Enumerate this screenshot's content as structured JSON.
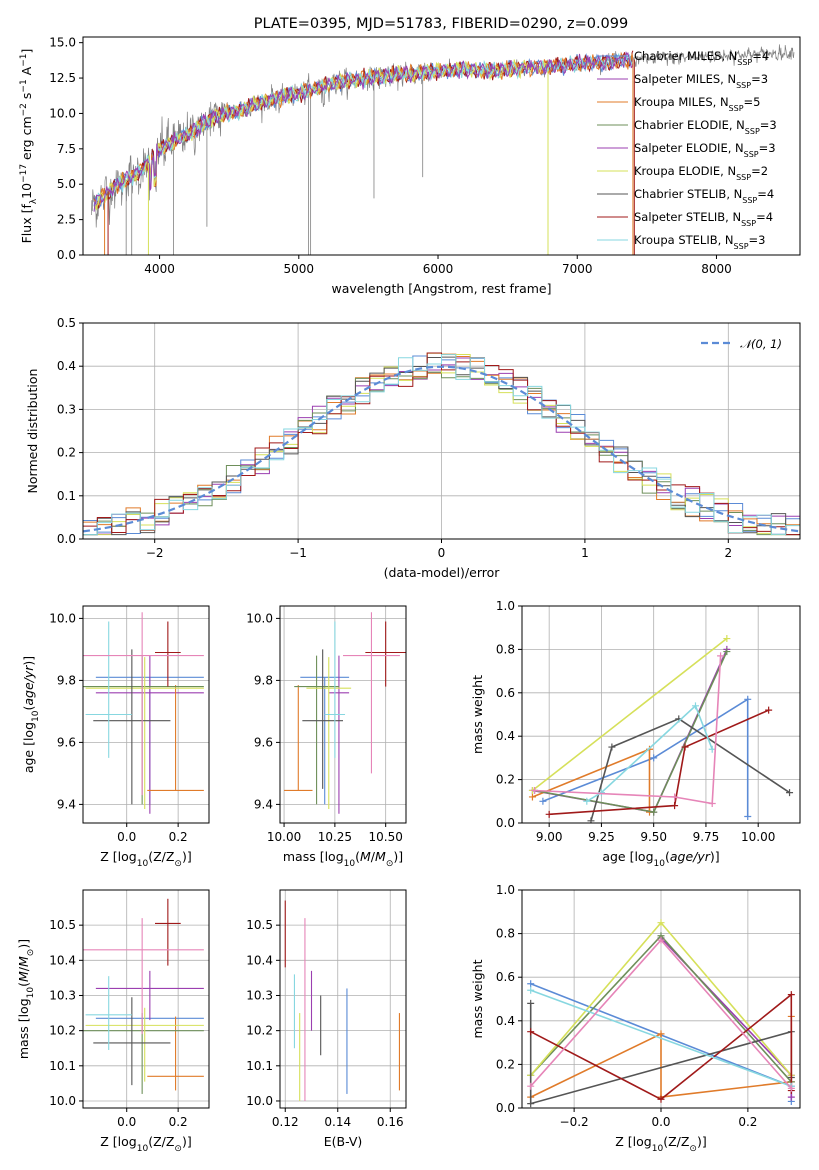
{
  "colors": {
    "Chabrier MILES": "#5b8bd6",
    "Salpeter MILES": "#9b3fb0",
    "Kroupa MILES": "#e07b2a",
    "Chabrier ELODIE": "#6e8f5a",
    "Salpeter ELODIE": "#9b3fb0",
    "Kroupa ELODIE": "#d6e05a",
    "Chabrier STELIB": "#555555",
    "Salpeter STELIB": "#a01a1a",
    "Kroupa STELIB": "#87d7e0",
    "pink": "#e685b8",
    "gray_data": "#808080",
    "normal": "#5b8bd6"
  },
  "chart_data": [
    {
      "id": "spectrum",
      "type": "line",
      "title": "PLATE=0395, MJD=51783, FIBERID=0290, z=0.099",
      "xlabel": "wavelength [Angstrom, rest frame]",
      "ylabel_html": "Flux [f<tspan baseline-shift='sub' font-size='9'>λ</tspan>10<tspan baseline-shift='super' font-size='9'>−17</tspan> erg cm<tspan baseline-shift='super' font-size='9'>−2</tspan> s<tspan baseline-shift='super' font-size='9'>−1</tspan> A<tspan baseline-shift='super' font-size='9'>−1</tspan>]",
      "xlim": [
        3450,
        8600
      ],
      "ylim": [
        0,
        15.4
      ],
      "xticks": [
        4000,
        5000,
        6000,
        7000,
        8000
      ],
      "yticks": [
        0.0,
        2.5,
        5.0,
        7.5,
        10.0,
        12.5,
        15.0
      ],
      "ytick_labels": [
        "0.0",
        "2.5",
        "5.0",
        "7.5",
        "10.0",
        "12.5",
        "15.0"
      ],
      "continuum": {
        "x": [
          3520,
          3700,
          3850,
          4000,
          4200,
          4400,
          4600,
          4800,
          5000,
          5200,
          5400,
          5600,
          5800,
          6000,
          6200,
          6400,
          6600,
          6800,
          7000,
          7200,
          7400
        ],
        "y": [
          3.5,
          5.0,
          5.8,
          7.5,
          8.5,
          9.8,
          10.3,
          11.0,
          11.4,
          12.0,
          12.4,
          12.6,
          12.8,
          13.0,
          13.1,
          13.0,
          13.2,
          13.3,
          13.5,
          13.6,
          13.8
        ]
      },
      "legend": [
        {
          "label": "Chabrier MILES, N",
          "sub": "SSP",
          "eq": "=4",
          "color_key": "Chabrier MILES"
        },
        {
          "label": "Salpeter MILES, N",
          "sub": "SSP",
          "eq": "=3",
          "color_key": "Salpeter MILES"
        },
        {
          "label": "Kroupa MILES, N",
          "sub": "SSP",
          "eq": "=5",
          "color_key": "Kroupa MILES"
        },
        {
          "label": "Chabrier ELODIE, N",
          "sub": "SSP",
          "eq": "=3",
          "color_key": "Chabrier ELODIE"
        },
        {
          "label": "Salpeter ELODIE, N",
          "sub": "SSP",
          "eq": "=3",
          "color_key": "Salpeter ELODIE"
        },
        {
          "label": "Kroupa ELODIE, N",
          "sub": "SSP",
          "eq": "=2",
          "color_key": "Kroupa ELODIE"
        },
        {
          "label": "Chabrier STELIB, N",
          "sub": "SSP",
          "eq": "=4",
          "color_key": "Chabrier STELIB"
        },
        {
          "label": "Salpeter STELIB, N",
          "sub": "SSP",
          "eq": "=4",
          "color_key": "Salpeter STELIB"
        },
        {
          "label": "Kroupa STELIB, N",
          "sub": "SSP",
          "eq": "=3",
          "color_key": "Kroupa STELIB"
        }
      ]
    },
    {
      "id": "residuals",
      "type": "histogram",
      "xlabel": "(data-model)/error",
      "ylabel": "Normed distribution",
      "xlim": [
        -2.5,
        2.5
      ],
      "ylim": [
        0,
        0.5
      ],
      "xticks": [
        -2,
        -1,
        0,
        1,
        2
      ],
      "xtick_labels": [
        "−2",
        "−1",
        "0",
        "1",
        "2"
      ],
      "yticks": [
        0.0,
        0.1,
        0.2,
        0.3,
        0.4,
        0.5
      ],
      "ytick_labels": [
        "0.0",
        "0.1",
        "0.2",
        "0.3",
        "0.4",
        "0.5"
      ],
      "bin_width": 0.1,
      "legend_label": "𝒩(0, 1)",
      "series_colors": [
        "Chabrier MILES",
        "Salpeter MILES",
        "Kroupa MILES",
        "Chabrier ELODIE",
        "Kroupa ELODIE",
        "Chabrier STELIB",
        "Salpeter STELIB",
        "Kroupa STELIB"
      ]
    },
    {
      "id": "age_vs_Z",
      "type": "errorbar",
      "xlabel_html": "Z [log<tspan baseline-shift='sub' font-size='9'>10</tspan>(Z/Z<tspan baseline-shift='sub' font-size='9'>⊙</tspan>)]",
      "ylabel_html": "age  [log<tspan baseline-shift='sub' font-size='9'>10</tspan>(<tspan font-style='italic'>age/yr</tspan>)]",
      "xlim": [
        -0.17,
        0.32
      ],
      "ylim": [
        9.34,
        10.04
      ],
      "xticks": [
        0.0,
        0.2
      ],
      "xtick_labels": [
        "0.0",
        "0.2"
      ],
      "yticks": [
        9.4,
        9.6,
        9.8,
        10.0
      ],
      "ytick_labels": [
        "9.4",
        "9.6",
        "9.8",
        "10.0"
      ],
      "points": [
        {
          "x": 0.09,
          "y": 9.81,
          "xerr": 0.21,
          "yerr": [
            0.41,
            0.0
          ],
          "color_key": "Chabrier MILES"
        },
        {
          "x": 0.09,
          "y": 9.76,
          "xerr": 0.21,
          "yerr": [
            0.39,
            0.12
          ],
          "color_key": "Salpeter MILES"
        },
        {
          "x": 0.19,
          "y": 9.445,
          "xerr": 0.11,
          "yerr": [
            0.0,
            0.34
          ],
          "color_key": "Kroupa MILES"
        },
        {
          "x": 0.06,
          "y": 9.78,
          "xerr": 0.24,
          "yerr": [
            0.38,
            0.1
          ],
          "color_key": "Chabrier ELODIE"
        },
        {
          "x": 0.07,
          "y": 9.775,
          "xerr": 0.23,
          "yerr": [
            0.39,
            0.1
          ],
          "color_key": "Kroupa ELODIE"
        },
        {
          "x": 0.02,
          "y": 9.67,
          "xerr": 0.15,
          "yerr": [
            0.27,
            0.23
          ],
          "color_key": "Chabrier STELIB"
        },
        {
          "x": 0.16,
          "y": 9.89,
          "xerr": 0.05,
          "yerr": [
            0.11,
            0.1
          ],
          "color_key": "Salpeter STELIB"
        },
        {
          "x": -0.07,
          "y": 9.69,
          "xerr": 0.09,
          "yerr": [
            0.14,
            0.3
          ],
          "color_key": "Kroupa STELIB"
        },
        {
          "x": 0.06,
          "y": 9.88,
          "xerr": 0.24,
          "yerr": [
            0.45,
            0.14
          ],
          "color_key": "pink"
        }
      ]
    },
    {
      "id": "age_vs_mass",
      "type": "errorbar",
      "xlabel_html": "mass [log<tspan baseline-shift='sub' font-size='9'>10</tspan>(<tspan font-style='italic'>M</tspan>/<tspan font-style='italic'>M</tspan><tspan baseline-shift='sub' font-size='9'>⊙</tspan>)]",
      "xlim": [
        9.98,
        10.6
      ],
      "ylim": [
        9.34,
        10.04
      ],
      "xticks": [
        10.0,
        10.25,
        10.5
      ],
      "xtick_labels": [
        "10.00",
        "10.25",
        "10.50"
      ],
      "yticks": [
        9.4,
        9.6,
        9.8,
        10.0
      ],
      "ytick_labels": [
        "9.4",
        "9.6",
        "9.8",
        "10.0"
      ],
      "points": [
        {
          "x": 10.2,
          "y": 9.81,
          "xerr": 0.12,
          "yerr": [
            0.41,
            0.0
          ],
          "color_key": "Chabrier MILES"
        },
        {
          "x": 10.27,
          "y": 9.76,
          "xerr": 0.05,
          "yerr": [
            0.39,
            0.12
          ],
          "color_key": "Salpeter MILES"
        },
        {
          "x": 10.07,
          "y": 9.445,
          "xerr": 0.07,
          "yerr": [
            0.0,
            0.34
          ],
          "color_key": "Kroupa MILES"
        },
        {
          "x": 10.16,
          "y": 9.78,
          "xerr": 0.11,
          "yerr": [
            0.38,
            0.1
          ],
          "color_key": "Chabrier ELODIE"
        },
        {
          "x": 10.22,
          "y": 9.775,
          "xerr": 0.11,
          "yerr": [
            0.39,
            0.1
          ],
          "color_key": "Kroupa ELODIE"
        },
        {
          "x": 10.19,
          "y": 9.67,
          "xerr": 0.1,
          "yerr": [
            0.22,
            0.23
          ],
          "color_key": "Chabrier STELIB"
        },
        {
          "x": 10.5,
          "y": 9.89,
          "xerr": 0.1,
          "yerr": [
            0.11,
            0.1
          ],
          "color_key": "Salpeter STELIB"
        },
        {
          "x": 10.25,
          "y": 9.69,
          "xerr": 0.05,
          "yerr": [
            0.14,
            0.3
          ],
          "color_key": "Kroupa STELIB"
        },
        {
          "x": 10.43,
          "y": 9.88,
          "xerr": 0.14,
          "yerr": [
            0.38,
            0.14
          ],
          "color_key": "pink"
        }
      ]
    },
    {
      "id": "weight_vs_age",
      "type": "line",
      "xlabel_html": "age  [log<tspan baseline-shift='sub' font-size='9'>10</tspan>(<tspan font-style='italic'>age/yr</tspan>)]",
      "ylabel": "mass weight",
      "xlim": [
        8.87,
        10.2
      ],
      "ylim": [
        0,
        1.0
      ],
      "xticks": [
        9.0,
        9.25,
        9.5,
        9.75,
        10.0
      ],
      "xtick_labels": [
        "9.00",
        "9.25",
        "9.50",
        "9.75",
        "10.00"
      ],
      "yticks": [
        0.0,
        0.2,
        0.4,
        0.6,
        0.8,
        1.0
      ],
      "ytick_labels": [
        "0.0",
        "0.2",
        "0.4",
        "0.6",
        "0.8",
        "1.0"
      ],
      "series": [
        {
          "color_key": "Chabrier MILES",
          "x": [
            9.95,
            9.95,
            9.5,
            8.97
          ],
          "y": [
            0.03,
            0.57,
            0.3,
            0.1
          ]
        },
        {
          "color_key": "Salpeter MILES",
          "x": [
            9.85,
            9.5,
            8.92
          ],
          "y": [
            0.8,
            0.05,
            0.15
          ]
        },
        {
          "color_key": "Kroupa MILES",
          "x": [
            9.48,
            9.48,
            8.92
          ],
          "y": [
            0.05,
            0.34,
            0.12
          ]
        },
        {
          "color_key": "Chabrier ELODIE",
          "x": [
            9.85,
            9.5,
            8.93
          ],
          "y": [
            0.79,
            0.05,
            0.15
          ]
        },
        {
          "color_key": "Kroupa ELODIE",
          "x": [
            9.85,
            8.92
          ],
          "y": [
            0.85,
            0.15
          ]
        },
        {
          "color_key": "Chabrier STELIB",
          "x": [
            10.15,
            9.62,
            9.3,
            9.2
          ],
          "y": [
            0.14,
            0.48,
            0.35,
            0.01
          ]
        },
        {
          "color_key": "Salpeter STELIB",
          "x": [
            10.05,
            9.65,
            9.6,
            9.0
          ],
          "y": [
            0.52,
            0.35,
            0.08,
            0.04
          ]
        },
        {
          "color_key": "Kroupa STELIB",
          "x": [
            9.78,
            9.7,
            9.25,
            9.18
          ],
          "y": [
            0.34,
            0.54,
            0.14,
            0.1
          ]
        },
        {
          "color_key": "pink",
          "x": [
            9.82,
            9.78,
            9.6,
            8.93
          ],
          "y": [
            0.77,
            0.09,
            0.12,
            0.15
          ]
        }
      ]
    },
    {
      "id": "mass_vs_Z",
      "type": "errorbar",
      "xlabel_html": "Z [log<tspan baseline-shift='sub' font-size='9'>10</tspan>(Z/Z<tspan baseline-shift='sub' font-size='9'>⊙</tspan>)]",
      "ylabel_html": "mass [log<tspan baseline-shift='sub' font-size='9'>10</tspan>(<tspan font-style='italic'>M</tspan>/<tspan font-style='italic'>M</tspan><tspan baseline-shift='sub' font-size='9'>⊙</tspan>)]",
      "xlim": [
        -0.17,
        0.32
      ],
      "ylim": [
        9.98,
        10.6
      ],
      "xticks": [
        0.0,
        0.2
      ],
      "xtick_labels": [
        "0.0",
        "0.2"
      ],
      "yticks": [
        10.0,
        10.1,
        10.2,
        10.3,
        10.4,
        10.5
      ],
      "ytick_labels": [
        "10.0",
        "10.1",
        "10.2",
        "10.3",
        "10.4",
        "10.5"
      ],
      "points": [
        {
          "x": 0.09,
          "y": 10.235,
          "xerr": 0.21,
          "yerr": [
            0.0,
            0.0
          ],
          "color_key": "Chabrier MILES"
        },
        {
          "x": 0.09,
          "y": 10.32,
          "xerr": 0.21,
          "yerr": [
            0.09,
            0.05
          ],
          "color_key": "Salpeter MILES"
        },
        {
          "x": 0.19,
          "y": 10.07,
          "xerr": 0.11,
          "yerr": [
            0.04,
            0.17
          ],
          "color_key": "Kroupa MILES"
        },
        {
          "x": 0.06,
          "y": 10.2,
          "xerr": 0.24,
          "yerr": [
            0.18,
            0.05
          ],
          "color_key": "Chabrier ELODIE"
        },
        {
          "x": 0.07,
          "y": 10.215,
          "xerr": 0.23,
          "yerr": [
            0.16,
            0.05
          ],
          "color_key": "Kroupa ELODIE"
        },
        {
          "x": 0.02,
          "y": 10.165,
          "xerr": 0.15,
          "yerr": [
            0.12,
            0.13
          ],
          "color_key": "Chabrier STELIB"
        },
        {
          "x": 0.16,
          "y": 10.505,
          "xerr": 0.05,
          "yerr": [
            0.12,
            0.07
          ],
          "color_key": "Salpeter STELIB"
        },
        {
          "x": -0.07,
          "y": 10.245,
          "xerr": 0.09,
          "yerr": [
            0.1,
            0.11
          ],
          "color_key": "Kroupa STELIB"
        },
        {
          "x": 0.06,
          "y": 10.43,
          "xerr": 0.24,
          "yerr": [
            0.24,
            0.09
          ],
          "color_key": "pink"
        }
      ]
    },
    {
      "id": "mass_vs_ebv",
      "type": "errorbar",
      "xlabel": "E(B-V)",
      "xlim": [
        0.118,
        0.166
      ],
      "ylim": [
        9.98,
        10.6
      ],
      "xticks": [
        0.12,
        0.14,
        0.16
      ],
      "xtick_labels": [
        "0.12",
        "0.14",
        "0.16"
      ],
      "yticks": [
        10.0,
        10.1,
        10.2,
        10.3,
        10.4,
        10.5
      ],
      "ytick_labels": [
        "10.0",
        "10.1",
        "10.2",
        "10.3",
        "10.4",
        "10.5"
      ],
      "points": [
        {
          "x": 0.12,
          "y": 10.48,
          "xerr": 0.0,
          "yerr": [
            0.1,
            0.09
          ],
          "color_key": "Salpeter STELIB"
        },
        {
          "x": 0.1235,
          "y": 10.25,
          "xerr": 0.0,
          "yerr": [
            0.1,
            0.11
          ],
          "color_key": "Kroupa STELIB"
        },
        {
          "x": 0.1255,
          "y": 10.12,
          "xerr": 0.0,
          "yerr": [
            0.12,
            0.13
          ],
          "color_key": "Kroupa ELODIE"
        },
        {
          "x": 0.1275,
          "y": 10.28,
          "xerr": 0.0,
          "yerr": [
            0.28,
            0.24
          ],
          "color_key": "pink"
        },
        {
          "x": 0.13,
          "y": 10.28,
          "xerr": 0.0,
          "yerr": [
            0.08,
            0.09
          ],
          "color_key": "Salpeter MILES"
        },
        {
          "x": 0.1335,
          "y": 10.2,
          "xerr": 0.0,
          "yerr": [
            0.07,
            0.1
          ],
          "color_key": "Chabrier STELIB"
        },
        {
          "x": 0.1435,
          "y": 10.17,
          "xerr": 0.0,
          "yerr": [
            0.15,
            0.15
          ],
          "color_key": "Chabrier MILES"
        },
        {
          "x": 0.1635,
          "y": 10.14,
          "xerr": 0.0,
          "yerr": [
            0.11,
            0.11
          ],
          "color_key": "Kroupa MILES"
        }
      ]
    },
    {
      "id": "weight_vs_Z",
      "type": "line",
      "xlabel_html": "Z [log<tspan baseline-shift='sub' font-size='9'>10</tspan>(Z/Z<tspan baseline-shift='sub' font-size='9'>⊙</tspan>)]",
      "ylabel": "mass weight",
      "xlim": [
        -0.32,
        0.32
      ],
      "ylim": [
        0,
        1.0
      ],
      "xticks": [
        -0.2,
        0.0,
        0.2
      ],
      "xtick_labels": [
        "−0.2",
        "0.0",
        "0.2"
      ],
      "yticks": [
        0.0,
        0.2,
        0.4,
        0.6,
        0.8,
        1.0
      ],
      "ytick_labels": [
        "0.0",
        "0.2",
        "0.4",
        "0.6",
        "0.8",
        "1.0"
      ],
      "series": [
        {
          "color_key": "Chabrier MILES",
          "x": [
            -0.3,
            0.3,
            0.3
          ],
          "y": [
            0.57,
            0.1,
            0.03
          ]
        },
        {
          "color_key": "Salpeter MILES",
          "x": [
            0.0,
            0.3,
            0.3
          ],
          "y": [
            0.78,
            0.15,
            0.05
          ]
        },
        {
          "color_key": "Kroupa MILES",
          "x": [
            -0.3,
            0.0,
            0.0,
            0.3,
            0.3
          ],
          "y": [
            0.05,
            0.34,
            0.05,
            0.12,
            0.42
          ]
        },
        {
          "color_key": "Chabrier ELODIE",
          "x": [
            -0.3,
            0.0,
            0.3
          ],
          "y": [
            0.15,
            0.79,
            0.12
          ]
        },
        {
          "color_key": "Kroupa ELODIE",
          "x": [
            -0.3,
            0.0,
            0.3
          ],
          "y": [
            0.15,
            0.85,
            0.15
          ]
        },
        {
          "color_key": "Chabrier STELIB",
          "x": [
            -0.3,
            -0.3,
            0.3,
            0.3
          ],
          "y": [
            0.48,
            0.02,
            0.35,
            0.14
          ]
        },
        {
          "color_key": "Salpeter STELIB",
          "x": [
            -0.3,
            0.0,
            0.3,
            0.3
          ],
          "y": [
            0.35,
            0.04,
            0.52,
            0.08
          ]
        },
        {
          "color_key": "Kroupa STELIB",
          "x": [
            -0.3,
            0.3
          ],
          "y": [
            0.54,
            0.1
          ]
        },
        {
          "color_key": "pink",
          "x": [
            -0.3,
            0.0,
            0.3
          ],
          "y": [
            0.1,
            0.77,
            0.09
          ]
        }
      ]
    }
  ]
}
